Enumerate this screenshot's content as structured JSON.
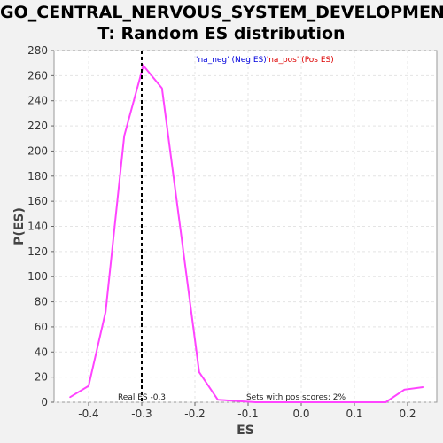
{
  "chart_data": {
    "type": "line",
    "title": "GO_CENTRAL_NERVOUS_SYSTEM_DEVELOPMEN\nT: Random ES distribution",
    "xlabel": "ES",
    "ylabel": "P(ES)",
    "xlim": [
      -0.465,
      0.255
    ],
    "ylim": [
      0,
      280
    ],
    "xticks": [
      "-0.4",
      "-0.3",
      "-0.2",
      "-0.1",
      "0.0",
      "0.1",
      "0.2"
    ],
    "yticks": [
      "0",
      "20",
      "40",
      "60",
      "80",
      "100",
      "120",
      "140",
      "160",
      "180",
      "200",
      "220",
      "240",
      "260",
      "280"
    ],
    "grid": true,
    "series": [
      {
        "color": "#ff44ff",
        "x": [
          -0.435,
          -0.4,
          -0.368,
          -0.333,
          -0.297,
          -0.262,
          -0.227,
          -0.192,
          -0.157,
          -0.121,
          -0.086,
          -0.051,
          -0.016,
          0.019,
          0.054,
          0.089,
          0.124,
          0.159,
          0.194,
          0.229
        ],
        "y": [
          4,
          13,
          72,
          212,
          268,
          250,
          137,
          24,
          2,
          1,
          0,
          0,
          0,
          0,
          0,
          0,
          0,
          0,
          10,
          12
        ]
      }
    ],
    "real_es": -0.3,
    "annotations": {
      "real_es_label": "Real ES -0.3",
      "pos_scores_label": "Sets with pos scores: 2%"
    },
    "legend": {
      "position": "top-center",
      "part1": "'na_neg' (Neg ES)",
      "part2": "'na_pos' (Pos ES)",
      "color1": "#0000dd",
      "color2": "#dd0000"
    }
  }
}
